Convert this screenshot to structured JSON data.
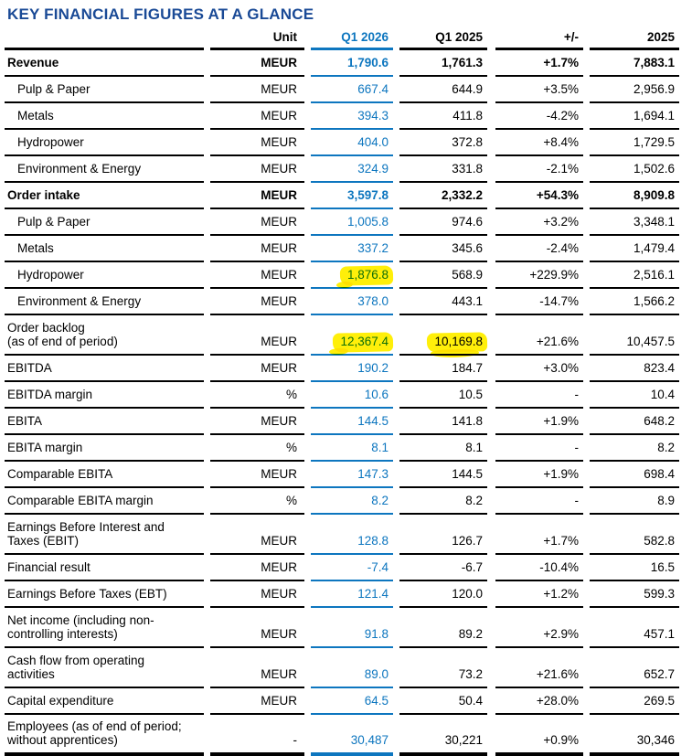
{
  "title": "KEY FINANCIAL FIGURES AT A GLANCE",
  "colors": {
    "accent_blue": "#0d76bf",
    "title_navy": "#1a4a96",
    "highlight_yellow": "#ffef0a",
    "line_black": "#000000"
  },
  "table": {
    "columns": [
      "",
      "Unit",
      "Q1 2026",
      "Q1 2025",
      "+/-",
      "2025"
    ],
    "rows": [
      {
        "label": "Revenue",
        "label2": "",
        "unit": "MEUR",
        "q1_2026": "1,790.6",
        "q1_2025": "1,761.3",
        "change": "+1.7%",
        "fy2025": "7,883.1",
        "bold": true,
        "indent": false,
        "hl_q1_2026": false,
        "hl_q1_2025": false
      },
      {
        "label": "Pulp & Paper",
        "label2": "",
        "unit": "MEUR",
        "q1_2026": "667.4",
        "q1_2025": "644.9",
        "change": "+3.5%",
        "fy2025": "2,956.9",
        "bold": false,
        "indent": true,
        "hl_q1_2026": false,
        "hl_q1_2025": false
      },
      {
        "label": "Metals",
        "label2": "",
        "unit": "MEUR",
        "q1_2026": "394.3",
        "q1_2025": "411.8",
        "change": "-4.2%",
        "fy2025": "1,694.1",
        "bold": false,
        "indent": true,
        "hl_q1_2026": false,
        "hl_q1_2025": false
      },
      {
        "label": "Hydropower",
        "label2": "",
        "unit": "MEUR",
        "q1_2026": "404.0",
        "q1_2025": "372.8",
        "change": "+8.4%",
        "fy2025": "1,729.5",
        "bold": false,
        "indent": true,
        "hl_q1_2026": false,
        "hl_q1_2025": false
      },
      {
        "label": "Environment & Energy",
        "label2": "",
        "unit": "MEUR",
        "q1_2026": "324.9",
        "q1_2025": "331.8",
        "change": "-2.1%",
        "fy2025": "1,502.6",
        "bold": false,
        "indent": true,
        "hl_q1_2026": false,
        "hl_q1_2025": false
      },
      {
        "label": "Order intake",
        "label2": "",
        "unit": "MEUR",
        "q1_2026": "3,597.8",
        "q1_2025": "2,332.2",
        "change": "+54.3%",
        "fy2025": "8,909.8",
        "bold": true,
        "indent": false,
        "hl_q1_2026": false,
        "hl_q1_2025": false
      },
      {
        "label": "Pulp & Paper",
        "label2": "",
        "unit": "MEUR",
        "q1_2026": "1,005.8",
        "q1_2025": "974.6",
        "change": "+3.2%",
        "fy2025": "3,348.1",
        "bold": false,
        "indent": true,
        "hl_q1_2026": false,
        "hl_q1_2025": false
      },
      {
        "label": "Metals",
        "label2": "",
        "unit": "MEUR",
        "q1_2026": "337.2",
        "q1_2025": "345.6",
        "change": "-2.4%",
        "fy2025": "1,479.4",
        "bold": false,
        "indent": true,
        "hl_q1_2026": false,
        "hl_q1_2025": false
      },
      {
        "label": "Hydropower",
        "label2": "",
        "unit": "MEUR",
        "q1_2026": "1,876.8",
        "q1_2025": "568.9",
        "change": "+229.9%",
        "fy2025": "2,516.1",
        "bold": false,
        "indent": true,
        "hl_q1_2026": true,
        "hl_q1_2025": false
      },
      {
        "label": "Environment & Energy",
        "label2": "",
        "unit": "MEUR",
        "q1_2026": "378.0",
        "q1_2025": "443.1",
        "change": "-14.7%",
        "fy2025": "1,566.2",
        "bold": false,
        "indent": true,
        "hl_q1_2026": false,
        "hl_q1_2025": false
      },
      {
        "label": "Order backlog",
        "label2": "(as of end of period)",
        "unit": "MEUR",
        "q1_2026": "12,367.4",
        "q1_2025": "10,169.8",
        "change": "+21.6%",
        "fy2025": "10,457.5",
        "bold": false,
        "indent": false,
        "hl_q1_2026": true,
        "hl_q1_2025": true
      },
      {
        "label": "EBITDA",
        "label2": "",
        "unit": "MEUR",
        "q1_2026": "190.2",
        "q1_2025": "184.7",
        "change": "+3.0%",
        "fy2025": "823.4",
        "bold": false,
        "indent": false,
        "hl_q1_2026": false,
        "hl_q1_2025": false
      },
      {
        "label": "EBITDA margin",
        "label2": "",
        "unit": "%",
        "q1_2026": "10.6",
        "q1_2025": "10.5",
        "change": "-",
        "fy2025": "10.4",
        "bold": false,
        "indent": false,
        "hl_q1_2026": false,
        "hl_q1_2025": false
      },
      {
        "label": "EBITA",
        "label2": "",
        "unit": "MEUR",
        "q1_2026": "144.5",
        "q1_2025": "141.8",
        "change": "+1.9%",
        "fy2025": "648.2",
        "bold": false,
        "indent": false,
        "hl_q1_2026": false,
        "hl_q1_2025": false
      },
      {
        "label": "EBITA margin",
        "label2": "",
        "unit": "%",
        "q1_2026": "8.1",
        "q1_2025": "8.1",
        "change": "-",
        "fy2025": "8.2",
        "bold": false,
        "indent": false,
        "hl_q1_2026": false,
        "hl_q1_2025": false
      },
      {
        "label": "Comparable EBITA",
        "label2": "",
        "unit": "MEUR",
        "q1_2026": "147.3",
        "q1_2025": "144.5",
        "change": "+1.9%",
        "fy2025": "698.4",
        "bold": false,
        "indent": false,
        "hl_q1_2026": false,
        "hl_q1_2025": false
      },
      {
        "label": "Comparable EBITA margin",
        "label2": "",
        "unit": "%",
        "q1_2026": "8.2",
        "q1_2025": "8.2",
        "change": "-",
        "fy2025": "8.9",
        "bold": false,
        "indent": false,
        "hl_q1_2026": false,
        "hl_q1_2025": false
      },
      {
        "label": "Earnings Before Interest and",
        "label2": "Taxes (EBIT)",
        "unit": "MEUR",
        "q1_2026": "128.8",
        "q1_2025": "126.7",
        "change": "+1.7%",
        "fy2025": "582.8",
        "bold": false,
        "indent": false,
        "hl_q1_2026": false,
        "hl_q1_2025": false
      },
      {
        "label": "Financial result",
        "label2": "",
        "unit": "MEUR",
        "q1_2026": "-7.4",
        "q1_2025": "-6.7",
        "change": "-10.4%",
        "fy2025": "16.5",
        "bold": false,
        "indent": false,
        "hl_q1_2026": false,
        "hl_q1_2025": false
      },
      {
        "label": "Earnings Before Taxes (EBT)",
        "label2": "",
        "unit": "MEUR",
        "q1_2026": "121.4",
        "q1_2025": "120.0",
        "change": "+1.2%",
        "fy2025": "599.3",
        "bold": false,
        "indent": false,
        "hl_q1_2026": false,
        "hl_q1_2025": false
      },
      {
        "label": "Net income (including non-",
        "label2": "controlling interests)",
        "unit": "MEUR",
        "q1_2026": "91.8",
        "q1_2025": "89.2",
        "change": "+2.9%",
        "fy2025": "457.1",
        "bold": false,
        "indent": false,
        "hl_q1_2026": false,
        "hl_q1_2025": false
      },
      {
        "label": "Cash flow from operating",
        "label2": "activities",
        "unit": "MEUR",
        "q1_2026": "89.0",
        "q1_2025": "73.2",
        "change": "+21.6%",
        "fy2025": "652.7",
        "bold": false,
        "indent": false,
        "hl_q1_2026": false,
        "hl_q1_2025": false
      },
      {
        "label": "Capital expenditure",
        "label2": "",
        "unit": "MEUR",
        "q1_2026": "64.5",
        "q1_2025": "50.4",
        "change": "+28.0%",
        "fy2025": "269.5",
        "bold": false,
        "indent": false,
        "hl_q1_2026": false,
        "hl_q1_2025": false
      },
      {
        "label": "Employees (as of end of period;",
        "label2": "without apprentices)",
        "unit": "-",
        "q1_2026": "30,487",
        "q1_2025": "30,221",
        "change": "+0.9%",
        "fy2025": "30,346",
        "bold": false,
        "indent": false,
        "hl_q1_2026": false,
        "hl_q1_2025": false
      }
    ]
  }
}
